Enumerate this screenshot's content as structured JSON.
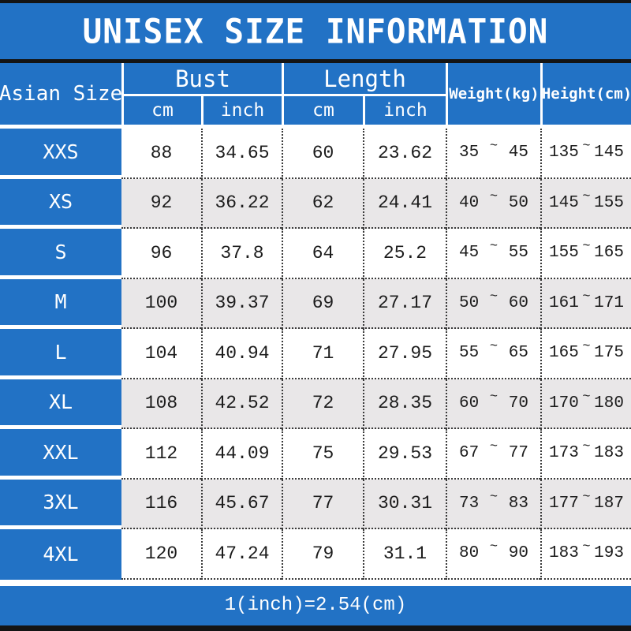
{
  "title": "UNISEX SIZE INFORMATION",
  "header": {
    "size_col": "Asian Size",
    "bust": "Bust",
    "length": "Length",
    "cm": "cm",
    "inch": "inch",
    "weight": "Weight(kg)",
    "height": "Height(cm)"
  },
  "tilde": "~",
  "rows": [
    {
      "size": "XXS",
      "bust_cm": "88",
      "bust_inch": "34.65",
      "length_cm": "60",
      "length_inch": "23.62",
      "weight_min": "35",
      "weight_max": "45",
      "height_min": "135",
      "height_max": "145"
    },
    {
      "size": "XS",
      "bust_cm": "92",
      "bust_inch": "36.22",
      "length_cm": "62",
      "length_inch": "24.41",
      "weight_min": "40",
      "weight_max": "50",
      "height_min": "145",
      "height_max": "155"
    },
    {
      "size": "S",
      "bust_cm": "96",
      "bust_inch": "37.8",
      "length_cm": "64",
      "length_inch": "25.2",
      "weight_min": "45",
      "weight_max": "55",
      "height_min": "155",
      "height_max": "165"
    },
    {
      "size": "M",
      "bust_cm": "100",
      "bust_inch": "39.37",
      "length_cm": "69",
      "length_inch": "27.17",
      "weight_min": "50",
      "weight_max": "60",
      "height_min": "161",
      "height_max": "171"
    },
    {
      "size": "L",
      "bust_cm": "104",
      "bust_inch": "40.94",
      "length_cm": "71",
      "length_inch": "27.95",
      "weight_min": "55",
      "weight_max": "65",
      "height_min": "165",
      "height_max": "175"
    },
    {
      "size": "XL",
      "bust_cm": "108",
      "bust_inch": "42.52",
      "length_cm": "72",
      "length_inch": "28.35",
      "weight_min": "60",
      "weight_max": "70",
      "height_min": "170",
      "height_max": "180"
    },
    {
      "size": "XXL",
      "bust_cm": "112",
      "bust_inch": "44.09",
      "length_cm": "75",
      "length_inch": "29.53",
      "weight_min": "67",
      "weight_max": "77",
      "height_min": "173",
      "height_max": "183"
    },
    {
      "size": "3XL",
      "bust_cm": "116",
      "bust_inch": "45.67",
      "length_cm": "77",
      "length_inch": "30.31",
      "weight_min": "73",
      "weight_max": "83",
      "height_min": "177",
      "height_max": "187"
    },
    {
      "size": "4XL",
      "bust_cm": "120",
      "bust_inch": "47.24",
      "length_cm": "79",
      "length_inch": "31.1",
      "weight_min": "80",
      "weight_max": "90",
      "height_min": "183",
      "height_max": "193"
    }
  ],
  "footer": "1(inch)=2.54(cm)",
  "colors": {
    "blue": "#2272c5",
    "row_alt": "#e9e7e8",
    "bar_black": "#141414"
  }
}
